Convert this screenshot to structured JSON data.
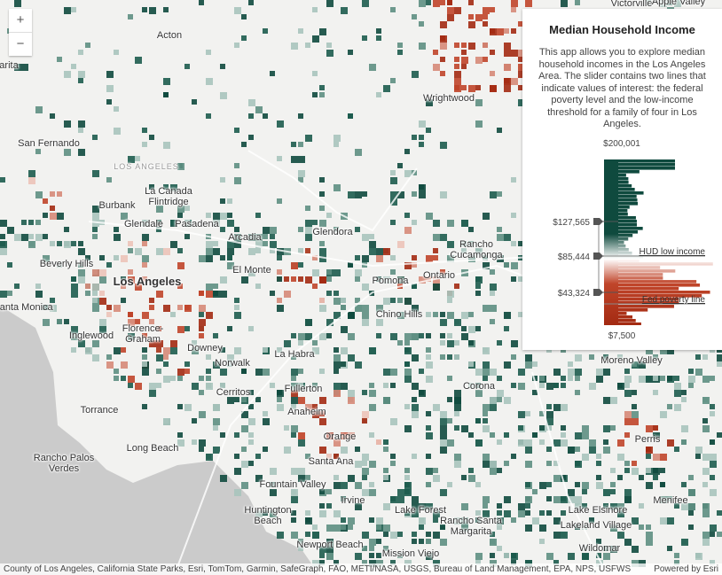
{
  "zoom_controls": {
    "zoom_in": "+",
    "zoom_out": "−"
  },
  "panel": {
    "title": "Median Household Income",
    "description": "This app allows you to explore median household incomes in the Los Angeles Area. The slider contains two lines that indicate values of interest: the federal poverty level and the low-income threshold for a family of four in Los Angeles.",
    "slider": {
      "max_label": "$200,001",
      "min_label": "$7,500",
      "thumb_labels": [
        "$127,565",
        "$85,444",
        "$43,324"
      ],
      "line_labels": [
        "HUD low income",
        "Fed poverty line"
      ]
    }
  },
  "place_labels": [
    "Acton",
    "Wrightwood",
    "San Fernando",
    "LOS ANGELES",
    "Burbank",
    "La Canada Flintridge",
    "Glendale",
    "Pasadena",
    "Arcadia",
    "Glendora",
    "Rancho Cucamonga",
    "Beverly Hills",
    "El Monte",
    "Los Angeles",
    "Pomona",
    "Ontario",
    "Santa Monica",
    "Chino Hills",
    "Inglewood",
    "Florence-Graham",
    "Downey",
    "Moreno Valley",
    "La Habra",
    "Norwalk",
    "Corona",
    "Cerritos",
    "Fullerton",
    "Torrance",
    "Anaheim",
    "Perris",
    "Orange",
    "Long Beach",
    "Rancho Palos Verdes",
    "Santa Ana",
    "Fountain Valley",
    "Irvine",
    "Menifee",
    "Huntington Beach",
    "Lake Forest",
    "Rancho Santa Margarita",
    "Lake Elsinore",
    "Lakeland Village",
    "Newport Beach",
    "Mission Viejo",
    "Wildomar",
    "Victorville",
    "Apple Valley",
    "arita"
  ],
  "attribution": "County of Los Angeles, California State Parks, Esri, TomTom, Garmin, SafeGraph, FAO, METI/NASA, USGS, Bureau of Land Management, EPA, NPS, USFWS",
  "powered_by": "Powered by Esri"
}
